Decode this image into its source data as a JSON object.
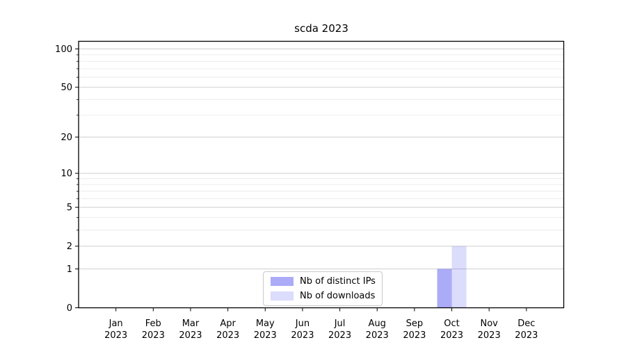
{
  "chart_data": {
    "type": "bar",
    "title": "scda 2023",
    "x_tick_labels": [
      {
        "month": "Jan",
        "year": "2023"
      },
      {
        "month": "Feb",
        "year": "2023"
      },
      {
        "month": "Mar",
        "year": "2023"
      },
      {
        "month": "Apr",
        "year": "2023"
      },
      {
        "month": "May",
        "year": "2023"
      },
      {
        "month": "Jun",
        "year": "2023"
      },
      {
        "month": "Jul",
        "year": "2023"
      },
      {
        "month": "Aug",
        "year": "2023"
      },
      {
        "month": "Sep",
        "year": "2023"
      },
      {
        "month": "Oct",
        "year": "2023"
      },
      {
        "month": "Nov",
        "year": "2023"
      },
      {
        "month": "Dec",
        "year": "2023"
      }
    ],
    "series": [
      {
        "name": "Nb of distinct IPs",
        "color": "#0000e654",
        "values": [
          0,
          0,
          0,
          0,
          0,
          0,
          0,
          0,
          0,
          1,
          0,
          0
        ]
      },
      {
        "name": "Nb of downloads",
        "color": "#0000e623",
        "values": [
          0,
          0,
          0,
          0,
          0,
          0,
          0,
          0,
          0,
          2,
          0,
          0
        ]
      }
    ],
    "xlabel": "",
    "ylabel": "",
    "y_scale": "log1p",
    "ylim": [
      0,
      114
    ],
    "y_major_ticks": [
      0,
      1,
      2,
      5,
      10,
      20,
      50,
      100
    ],
    "y_minor_ticks": [
      3,
      4,
      6,
      7,
      8,
      9,
      30,
      40,
      60,
      70,
      80,
      90
    ],
    "grid": "horizontal, major and minor, on",
    "legend_position": "lower center",
    "colors": {
      "major_grid": "#cfcfcf",
      "minor_grid": "#ececec",
      "axis": "#000000",
      "text": "#000000",
      "background": "#ffffff"
    }
  }
}
